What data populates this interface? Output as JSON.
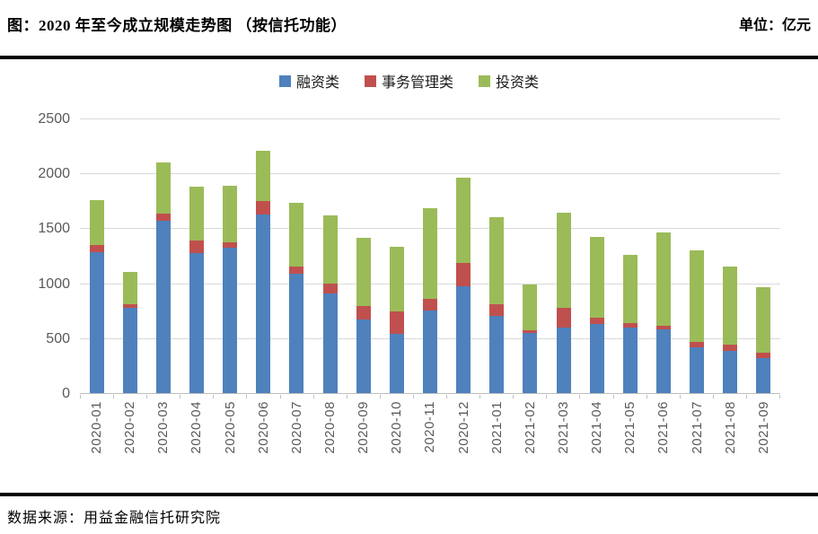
{
  "header": {
    "title": "图：2020 年至今成立规模走势图 （按信托功能）",
    "unit_label": "单位：亿元"
  },
  "footer": {
    "source": "数据来源：用益金融信托研究院"
  },
  "chart_data": {
    "type": "bar",
    "stacked": true,
    "title": "2020 年至今成立规模走势图（按信托功能）",
    "unit": "亿元",
    "categories": [
      "2020-01",
      "2020-02",
      "2020-03",
      "2020-04",
      "2020-05",
      "2020-06",
      "2020-07",
      "2020-08",
      "2020-09",
      "2020-10",
      "2020-11",
      "2020-12",
      "2021-01",
      "2021-02",
      "2021-03",
      "2021-04",
      "2021-05",
      "2021-06",
      "2021-07",
      "2021-08",
      "2021-09"
    ],
    "series": [
      {
        "name": "融资类",
        "color": "#4F81BD",
        "values": [
          1285,
          780,
          1570,
          1275,
          1320,
          1630,
          1090,
          910,
          670,
          540,
          750,
          970,
          700,
          545,
          595,
          630,
          600,
          580,
          420,
          385,
          315
        ]
      },
      {
        "name": "事务管理类",
        "color": "#C0504D",
        "values": [
          60,
          30,
          65,
          115,
          55,
          120,
          60,
          85,
          125,
          205,
          110,
          215,
          105,
          25,
          185,
          60,
          40,
          35,
          45,
          55,
          55
        ]
      },
      {
        "name": "投资类",
        "color": "#9BBB59",
        "values": [
          410,
          290,
          465,
          485,
          515,
          455,
          585,
          625,
          615,
          585,
          825,
          775,
          795,
          415,
          865,
          735,
          615,
          845,
          835,
          710,
          595
        ]
      }
    ],
    "ylim": [
      0,
      2500
    ],
    "yticks": [
      0,
      500,
      1000,
      1500,
      2000,
      2500
    ],
    "grid": true,
    "legend_position": "top",
    "xlabel": "",
    "ylabel": ""
  },
  "colors": {
    "gridline": "#D9D9D9",
    "axis": "#BFBFBF",
    "axis_text": "#595959"
  }
}
